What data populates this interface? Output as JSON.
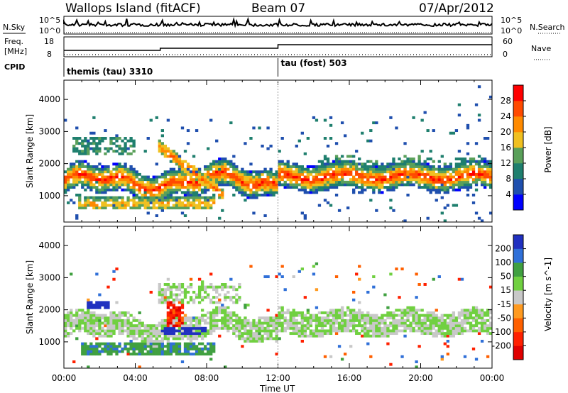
{
  "header": {
    "title": "Wallops Island (fitACF)",
    "beam": "Beam 07",
    "date": "07/Apr/2012"
  },
  "status_panels": {
    "nsky_label": "N.Sky",
    "nsearch_label": "N.Search",
    "freq_label_line1": "Freq.",
    "freq_label_line2": "[MHz]",
    "nave_label": "Nave",
    "cpid_label": "CPID",
    "noise_ticks": [
      "10^5",
      "10^0"
    ],
    "freq_ticks": [
      "18",
      "8"
    ],
    "nave_ticks": [
      "60",
      "0"
    ],
    "cpid_segments": [
      {
        "name": "themis (tau) 3310",
        "start_hour": 0
      },
      {
        "name": "tau (fost) 503",
        "start_hour": 12
      }
    ],
    "freq_steps": [
      {
        "from_hour": 0,
        "to_hour": 5.4,
        "mhz": 10.5
      },
      {
        "from_hour": 5.4,
        "to_hour": 12,
        "mhz": 12.0
      },
      {
        "from_hour": 12,
        "to_hour": 24,
        "mhz": 14.5
      }
    ]
  },
  "chart_data": [
    {
      "type": "heatmap",
      "parameter": "Power",
      "ylabel": "Slant Range [km]",
      "xlabel": "Time UT",
      "x_range_hours": [
        0,
        24
      ],
      "ylim": [
        180,
        4600
      ],
      "y_ticks": [
        1000,
        2000,
        3000,
        4000
      ],
      "x_ticks": [
        "00:00",
        "04:00",
        "08:00",
        "12:00",
        "16:00",
        "20:00",
        "00:00"
      ],
      "colorbar": {
        "label": "Power [dB]",
        "ticks": [
          "4",
          "8",
          "12",
          "16",
          "20",
          "24",
          "28"
        ],
        "colors": [
          "#0000ff",
          "#1f4fae",
          "#1f7f6e",
          "#5aa05a",
          "#f0c020",
          "#ff8a00",
          "#ff4a00",
          "#ff0000"
        ]
      },
      "features": [
        {
          "name": "main-echo-band",
          "start_hour": 0,
          "end_hour": 24,
          "range_km": [
            1000,
            2200
          ],
          "peak_db": 24
        },
        {
          "name": "morning-low-band",
          "start_hour": 0.8,
          "end_hour": 8.5,
          "range_km": [
            600,
            900
          ],
          "peak_db": 20
        },
        {
          "name": "arc-0600",
          "start_hour": 5.2,
          "end_hour": 9,
          "range_km": [
            900,
            2800
          ],
          "peak_db": 26
        },
        {
          "name": "high-scatter-0200",
          "start_hour": 0.5,
          "end_hour": 4,
          "range_km": [
            2300,
            2700
          ],
          "peak_db": 10
        }
      ]
    },
    {
      "type": "heatmap",
      "parameter": "Velocity",
      "ylabel": "Slant Range [km]",
      "xlabel": "Time UT",
      "x_range_hours": [
        0,
        24
      ],
      "ylim": [
        180,
        4600
      ],
      "y_ticks": [
        1000,
        2000,
        3000,
        4000
      ],
      "x_ticks": [
        "00:00",
        "04:00",
        "08:00",
        "12:00",
        "16:00",
        "20:00",
        "00:00"
      ],
      "colorbar": {
        "label": "Velocity [m s^-1]",
        "ticks": [
          "200",
          "100",
          "50",
          "15",
          "-15",
          "-50",
          "-100",
          "-200"
        ],
        "colors": [
          "#2030c0",
          "#3070d8",
          "#40a040",
          "#70d040",
          "#c8c8c8",
          "#ff9a20",
          "#ff6000",
          "#ff2000",
          "#e00000"
        ]
      },
      "features": [
        {
          "name": "ground-scatter-band",
          "start_hour": 0,
          "end_hour": 24,
          "range_km": [
            1200,
            1900
          ],
          "velocity_ms": 0
        },
        {
          "name": "green-low-band",
          "start_hour": 1,
          "end_hour": 8.5,
          "range_km": [
            600,
            900
          ],
          "velocity_ms": 60
        },
        {
          "name": "blue-blob-0200",
          "start_hour": 1.3,
          "end_hour": 2.5,
          "range_km": [
            2000,
            2300
          ],
          "velocity_ms": 200
        },
        {
          "name": "orange-streak-0600",
          "start_hour": 5.7,
          "end_hour": 6.7,
          "range_km": [
            1500,
            2300
          ],
          "velocity_ms": -100
        },
        {
          "name": "blue-streak-0600",
          "start_hour": 5.5,
          "end_hour": 8,
          "range_km": [
            1200,
            1500
          ],
          "velocity_ms": 180
        }
      ]
    }
  ],
  "colors": {
    "axis": "#000000",
    "background": "#ffffff"
  }
}
